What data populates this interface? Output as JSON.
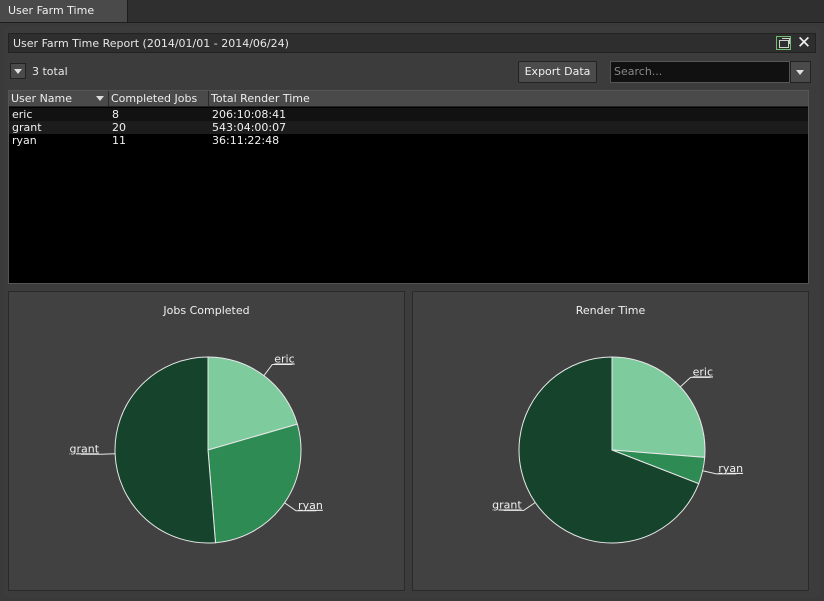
{
  "tab": {
    "label": "User Farm Time Report"
  },
  "report": {
    "title": "User Farm Time Report (2014/01/01 - 2014/06/24)"
  },
  "toolbar": {
    "total_label": "3 total",
    "export_label": "Export Data"
  },
  "search": {
    "placeholder": "Search..."
  },
  "table": {
    "columns": [
      "User Name",
      "Completed Jobs",
      "Total Render Time"
    ],
    "rows": [
      {
        "user": "eric",
        "jobs": "8",
        "time": "206:10:08:41"
      },
      {
        "user": "grant",
        "jobs": "20",
        "time": "543:04:00:07"
      },
      {
        "user": "ryan",
        "jobs": "11",
        "time": "36:11:22:48"
      }
    ]
  },
  "colors": {
    "eric": "#7ecb9e",
    "ryan": "#2e8b53",
    "grant": "#15432b"
  },
  "chart_data": [
    {
      "type": "pie",
      "title": "Jobs Completed",
      "categories": [
        "eric",
        "ryan",
        "grant"
      ],
      "values": [
        8,
        11,
        20
      ]
    },
    {
      "type": "pie",
      "title": "Render Time",
      "categories": [
        "eric",
        "ryan",
        "grant"
      ],
      "values": [
        206.42,
        36.47,
        543.17
      ]
    }
  ]
}
